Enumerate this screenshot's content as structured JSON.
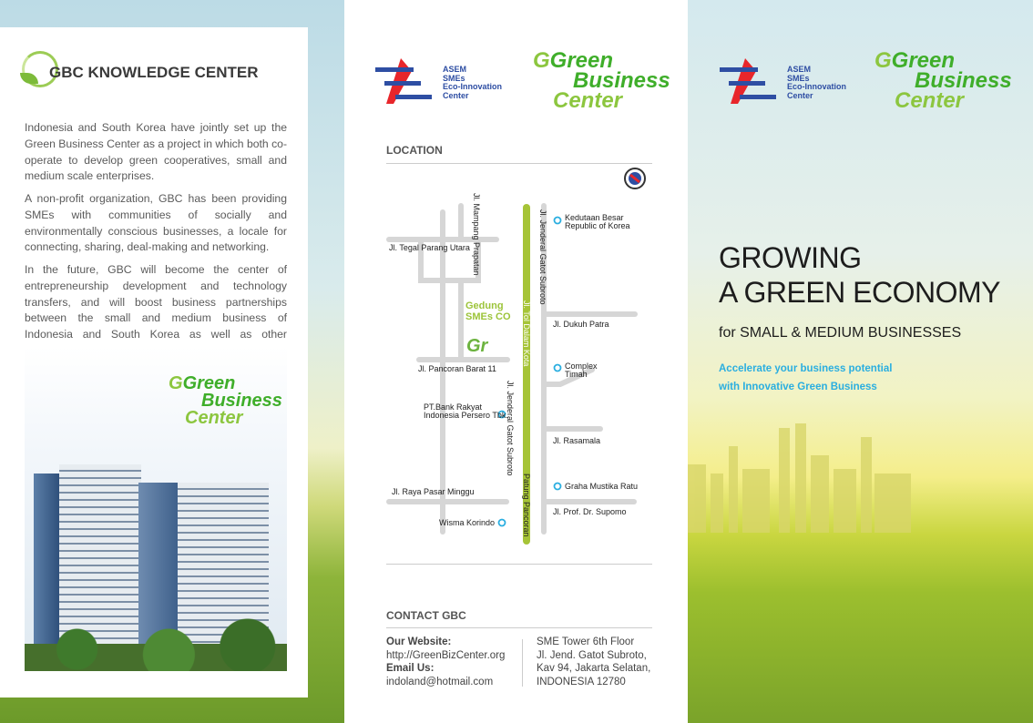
{
  "left_panel": {
    "title": "GBC KNOWLEDGE CENTER",
    "paragraphs": [
      "Indonesia and South Korea have jointly set up the Green Business Center as a project in which both co-operate to develop green cooperatives, small and medium scale enterprises.",
      "A non-profit organization, GBC has been providing SMEs with communities of socially and environmentally conscious businesses, a locale for connecting, sharing, deal-making and networking.",
      "In the future, GBC will become the center of entrepreneurship development and technology transfers, and will boost business partnerships between the small and medium business of Indonesia and South Korea as well as other neighboring countries."
    ],
    "logo": [
      "Green",
      "Business",
      "Center"
    ]
  },
  "logos": {
    "asem": [
      "ASEM",
      "SMEs",
      "Eco-Innovation",
      "Center"
    ],
    "gbc": [
      "Green",
      "Business",
      "Center"
    ]
  },
  "location": {
    "heading": "LOCATION",
    "streets": {
      "mampang": "Jl. Mampang Prapatan",
      "tegal": "Jl. Tegal Parang Utara",
      "gatot1": "Jl. Jenderal Gatot Subroto",
      "tol": "Jl. Tol Dalam Kota",
      "dukuh": "Jl. Dukuh Patra",
      "pancoran": "Jl. Pancoran Barat 11",
      "gatot2": "Jl. Jenderal Gatot Subroto",
      "rasamala": "Jl. Rasamala",
      "patung": "Patung Pancoran",
      "pasar": "Jl. Raya Pasar Minggu",
      "supomo": "Jl. Prof. Dr. Supomo"
    },
    "places": {
      "kedutaan": [
        "Kedutaan Besar",
        "Republic of Korea"
      ],
      "complex": [
        "Complex",
        "Timah"
      ],
      "bri": [
        "PT.Bank Rakyat",
        "Indonesia Persero Tbk."
      ],
      "graha": "Graha Mustika Ratu",
      "wisma": "Wisma Korindo",
      "gedung": [
        "Gedung",
        "SMEs CO"
      ]
    },
    "marker_color": "#2aaee0",
    "highlight_road_color": "#a6c437"
  },
  "contact": {
    "heading": "CONTACT GBC",
    "website_label": "Our Website:",
    "website": "http://GreenBizCenter.org",
    "email_label": "Email Us:",
    "email": "indoland@hotmail.com",
    "address": [
      "SME  Tower  6th Floor",
      "Jl. Jend. Gatot Subroto,",
      "Kav 94, Jakarta Selatan,",
      "INDONESIA 12780"
    ]
  },
  "cover": {
    "title": [
      "GROWING",
      "A GREEN ECONOMY"
    ],
    "subtitle": "for SMALL & MEDIUM BUSINESSES",
    "tagline": [
      "Accelerate your business potential",
      "with Innovative Green Business"
    ]
  }
}
